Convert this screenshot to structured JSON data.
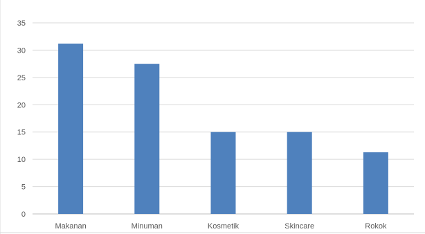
{
  "chart_data": {
    "type": "bar",
    "categories": [
      "Makanan",
      "Minuman",
      "Kosmetik",
      "Skincare",
      "Rokok"
    ],
    "values": [
      31.2,
      27.5,
      15,
      15,
      11.3
    ],
    "ylim": [
      0,
      35
    ],
    "yticks": [
      "0",
      "5",
      "10",
      "15",
      "20",
      "25",
      "30",
      "35"
    ],
    "grid": true,
    "legend": "none",
    "bar_color": "#4f81bd",
    "grid_color": "#d9d9d9",
    "tick_label_color": "#595959"
  }
}
